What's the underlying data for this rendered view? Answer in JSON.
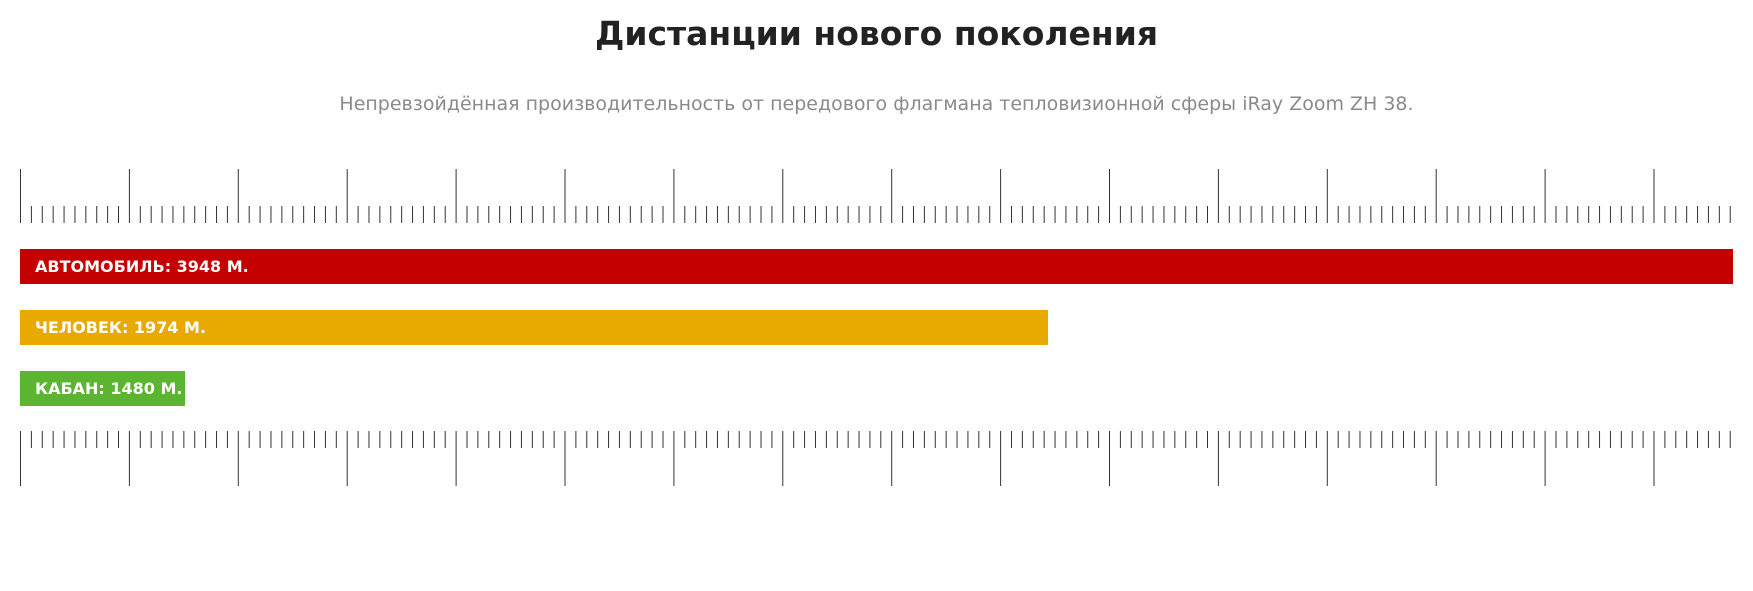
{
  "header": {
    "title": "Дистанции нового поколения",
    "subtitle": "Непревзойдённая производительность от передового флагмана тепловизионной сферы iRay Zoom ZH 38."
  },
  "bars": [
    {
      "label": "АВТОМОБИЛЬ: 3948 М."
    },
    {
      "label": "ЧЕЛОВЕК: 1974 М."
    },
    {
      "label": "КАБАН: 1480 М."
    }
  ]
}
